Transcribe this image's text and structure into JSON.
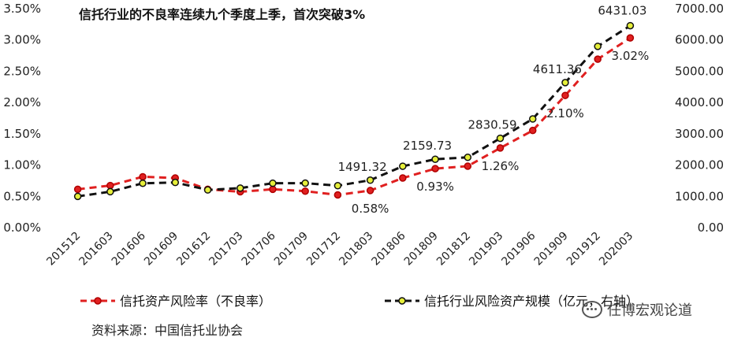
{
  "source": "资料来源：中国信托业协会",
  "watermark": "任博宏观论道",
  "chart_data": {
    "type": "line",
    "title": "信托行业的不良率连续九个季度上季，首次突破3%",
    "categories": [
      "201512",
      "201603",
      "201606",
      "201609",
      "201612",
      "201703",
      "201706",
      "201709",
      "201712",
      "201803",
      "201806",
      "201809",
      "201812",
      "201903",
      "201906",
      "201909",
      "201912",
      "202003"
    ],
    "series": [
      {
        "name": "信托资产风险率（不良率）",
        "axis": "left",
        "color": "#e02020",
        "values": [
          0.6,
          0.66,
          0.8,
          0.78,
          0.6,
          0.56,
          0.6,
          0.57,
          0.51,
          0.58,
          0.78,
          0.93,
          0.97,
          1.26,
          1.54,
          2.1,
          2.68,
          3.02
        ],
        "labels": {
          "9": "0.58%",
          "11": "0.93%",
          "13": "1.26%",
          "15": "2.10%",
          "17": "3.02%"
        }
      },
      {
        "name": "信托行业风险资产规模（亿元，右轴）",
        "axis": "right",
        "color": "#111111",
        "values": [
          973,
          1123,
          1392,
          1418,
          1179,
          1237,
          1393,
          1396,
          1315,
          1491.32,
          1937,
          2159.73,
          2222,
          2830.59,
          3449,
          4611.36,
          5770,
          6431.03
        ],
        "labels": {
          "9": "1491.32",
          "11": "2159.73",
          "13": "2830.59",
          "15": "4611.36",
          "17": "6431.03"
        }
      }
    ],
    "y_left": {
      "min": 0,
      "max": 3.5,
      "step": 0.5,
      "ticks": [
        "0.00%",
        "0.50%",
        "1.00%",
        "1.50%",
        "2.00%",
        "2.50%",
        "3.00%",
        "3.50%"
      ]
    },
    "y_right": {
      "min": 0,
      "max": 7000,
      "step": 1000,
      "ticks": [
        "0.00",
        "1000.00",
        "2000.00",
        "3000.00",
        "4000.00",
        "5000.00",
        "6000.00",
        "7000.00"
      ]
    },
    "grid": false,
    "legend": "bottom",
    "background": "#ffffff"
  }
}
